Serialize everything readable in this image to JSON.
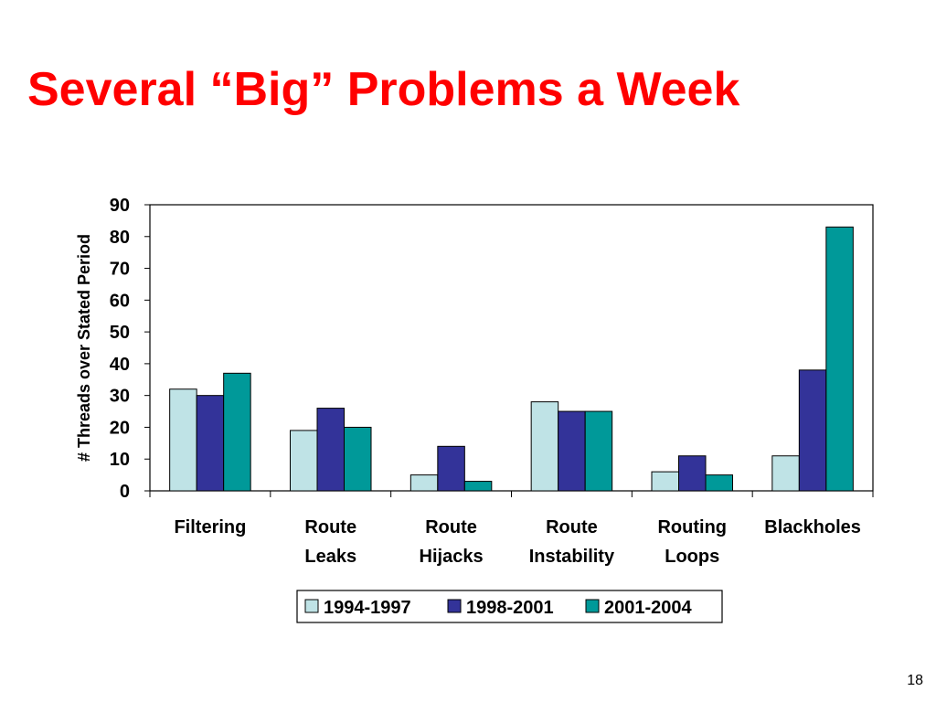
{
  "slide": {
    "title": "Several “Big” Problems a Week",
    "page_number": "18"
  },
  "colors": {
    "title": "#ff0000",
    "series": [
      "#bfe3e6",
      "#333399",
      "#009999"
    ]
  },
  "chart_data": {
    "type": "bar",
    "title": "",
    "xlabel": "",
    "ylabel": "# Threads over Stated Period",
    "categories": [
      [
        "Filtering"
      ],
      [
        "Route",
        "Leaks"
      ],
      [
        "Route",
        "Hijacks"
      ],
      [
        "Route",
        "Instability"
      ],
      [
        "Routing",
        "Loops"
      ],
      [
        "Blackholes"
      ]
    ],
    "series": [
      {
        "name": "1994-1997",
        "values": [
          32,
          19,
          5,
          28,
          6,
          11
        ]
      },
      {
        "name": "1998-2001",
        "values": [
          30,
          26,
          14,
          25,
          11,
          38
        ]
      },
      {
        "name": "2001-2004",
        "values": [
          37,
          20,
          3,
          25,
          5,
          83
        ]
      }
    ],
    "ylim": [
      0,
      90
    ],
    "yticks": [
      0,
      10,
      20,
      30,
      40,
      50,
      60,
      70,
      80,
      90
    ],
    "grid": false,
    "legend": "bottom"
  }
}
